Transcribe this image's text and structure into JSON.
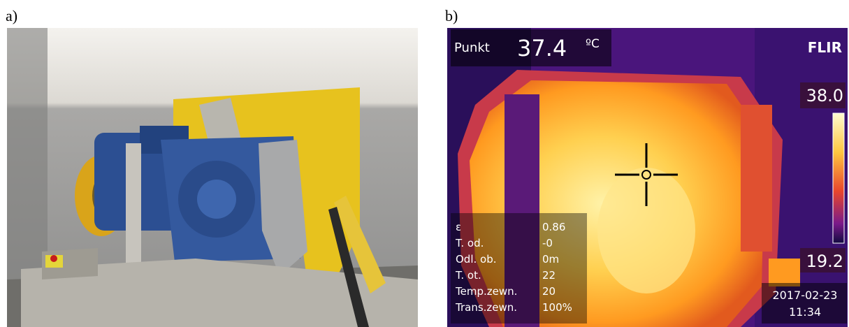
{
  "panels": [
    {
      "label": "a)"
    },
    {
      "label": "b)",
      "overlay": {
        "mode": "Punkt",
        "temperature": "37.4",
        "unit": "ºC",
        "brand": "FLIR",
        "scale_max": "38.0",
        "scale_min": "19.2",
        "date": "2017-02-23",
        "time": "11:34",
        "parameters": [
          {
            "name": "ε",
            "value": "0.86"
          },
          {
            "name": "T. od.",
            "value": "-0"
          },
          {
            "name": "Odl. ob.",
            "value": "0m"
          },
          {
            "name": "T. ot.",
            "value": "22"
          },
          {
            "name": "Temp.zewn.",
            "value": "20"
          },
          {
            "name": "Trans.zewn.",
            "value": "100%"
          }
        ]
      }
    }
  ]
}
